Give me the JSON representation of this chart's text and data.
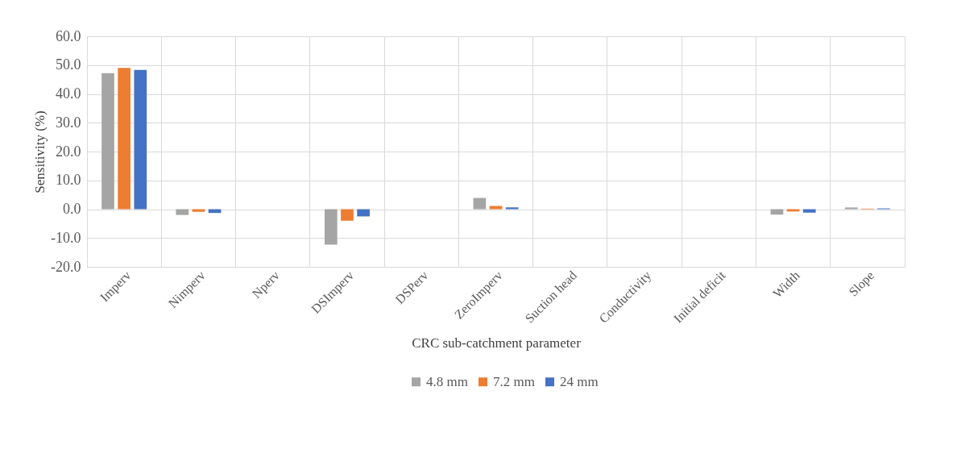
{
  "chart_data": {
    "type": "bar",
    "xlabel": "CRC sub-catchment parameter",
    "ylabel": "Sensitivity (%)",
    "categories": [
      "Imperv",
      "Nimperv",
      "Nperv",
      "DSImperv",
      "DSPerv",
      "ZeroImperv",
      "Suction head",
      "Conductivity",
      "Initial deficit",
      "Width",
      "Slope"
    ],
    "series": [
      {
        "name": "4.8 mm",
        "color": "#a5a5a5",
        "values": [
          47.2,
          -2.0,
          0,
          -12.3,
          0,
          3.9,
          0,
          0,
          0,
          -1.9,
          0.6
        ]
      },
      {
        "name": "7.2 mm",
        "color": "#ed7d31",
        "values": [
          49.0,
          -0.9,
          0,
          -4.0,
          0,
          1.1,
          0,
          0,
          0,
          -0.8,
          0.2
        ]
      },
      {
        "name": "24 mm",
        "color": "#4472c4",
        "values": [
          48.3,
          -1.3,
          0,
          -2.5,
          0,
          0.6,
          0,
          0,
          0,
          -1.2,
          0.3
        ]
      }
    ],
    "ylim": [
      -20,
      60
    ],
    "yticks": [
      {
        "value": -20,
        "label": "-20.0"
      },
      {
        "value": -10,
        "label": "-10.0"
      },
      {
        "value": 0,
        "label": "0.0"
      },
      {
        "value": 10,
        "label": "10.0"
      },
      {
        "value": 20,
        "label": "20.0"
      },
      {
        "value": 30,
        "label": "30.0"
      },
      {
        "value": 40,
        "label": "40.0"
      },
      {
        "value": 50,
        "label": "50.0"
      },
      {
        "value": 60,
        "label": "60.0"
      }
    ],
    "grid": true,
    "legend": "bottom"
  }
}
